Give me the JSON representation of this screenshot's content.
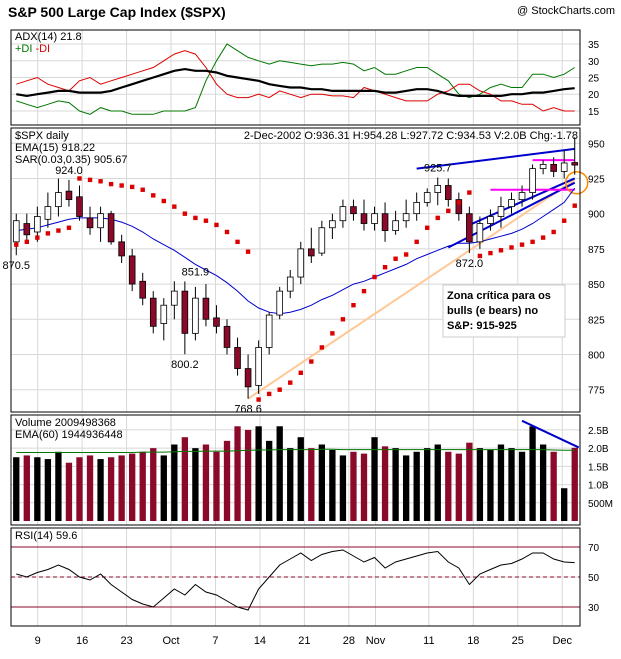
{
  "header": {
    "title": "S&P 500 Large Cap Index ($SPX)",
    "watermark": "@ StockCharts.com"
  },
  "colors": {
    "up_candle": "#ffffff",
    "down_candle": "#8b0a2a",
    "ema": "#0000cc",
    "sar": "#dd0000",
    "adx": "#000000",
    "plus_di": "#007700",
    "minus_di": "#dd0000",
    "trendline_blue": "#0000cc",
    "trendline_orange": "#ffc896",
    "support_magenta": "#ff00ff",
    "note_text": "#ff6600",
    "vol_up": "#000000",
    "vol_down": "#8b0a2a",
    "rsi": "#000000",
    "rsi_bands": "#8b0a2a"
  },
  "chart_data": [
    {
      "type": "line",
      "panel": "adx",
      "legend": [
        "ADX(14) 21.8",
        "+DI",
        "-DI"
      ],
      "ylim": [
        12,
        38
      ],
      "yticks": [
        15,
        20,
        25,
        30,
        35
      ],
      "series": [
        {
          "name": "ADX(14) 21.8",
          "values": [
            20,
            19.5,
            20,
            20.5,
            21,
            21,
            20.5,
            20.5,
            20.5,
            21,
            22,
            23,
            24,
            25,
            26,
            27,
            27.5,
            27,
            27,
            26.5,
            25.5,
            25,
            24.5,
            24,
            23,
            22.5,
            22,
            22,
            21.5,
            21.5,
            21,
            21,
            21,
            21,
            21,
            20.5,
            20.5,
            21,
            21.5,
            21.5,
            21,
            20,
            19.5,
            19.5,
            19.5,
            19.5,
            19.5,
            20,
            20,
            20.5,
            20.5,
            21,
            21.5,
            21.8
          ]
        },
        {
          "name": "+DI",
          "values": [
            18,
            17,
            16,
            17,
            18,
            17.5,
            15,
            14,
            16,
            15,
            15,
            14,
            14,
            14,
            15,
            15,
            15,
            16,
            24,
            30,
            35,
            33,
            31,
            30,
            29,
            30,
            29.5,
            29,
            28.5,
            29,
            29,
            29.5,
            29,
            27,
            28,
            26,
            26,
            27,
            28,
            28,
            26,
            24,
            20,
            19,
            20,
            22,
            23,
            22,
            22,
            26,
            26,
            25,
            26,
            28
          ]
        },
        {
          "name": "-DI",
          "values": [
            23,
            24,
            25,
            23,
            22,
            21,
            24,
            25,
            23,
            24,
            25,
            26,
            27,
            28,
            30,
            32,
            33,
            32,
            28,
            23,
            20,
            19,
            19,
            20,
            19,
            21,
            20,
            19,
            20,
            20,
            19.5,
            19.5,
            19,
            22,
            21,
            20,
            19,
            18,
            18,
            18,
            20,
            21,
            23,
            23,
            21,
            20,
            18,
            18,
            17,
            17,
            15,
            16,
            15,
            15
          ]
        }
      ]
    },
    {
      "type": "candlestick",
      "panel": "price",
      "legend": [
        "$SPX daily",
        "EMA(15) 918.22",
        "SAR(0.03,0.35) 905.67"
      ],
      "info_line": "2-Dec-2002 O:936.31 H:954.28 L:927.72 C:934.53 V:2.0B Chg:-1.78",
      "ylim": [
        762,
        958
      ],
      "yticks": [
        775,
        800,
        825,
        850,
        875,
        900,
        925,
        950
      ],
      "annotations": [
        {
          "text": "870.5",
          "index": 0,
          "value": 870.5
        },
        {
          "text": "924.0",
          "index": 5,
          "value": 924.0
        },
        {
          "text": "851.9",
          "index": 17,
          "value": 851.9
        },
        {
          "text": "800.2",
          "index": 16,
          "value": 800.2
        },
        {
          "text": "768.6",
          "index": 22,
          "value": 768.6
        },
        {
          "text": "925.7",
          "index": 40,
          "value": 925.7
        },
        {
          "text": "872.0",
          "index": 43,
          "value": 872.0
        }
      ],
      "note": [
        "Zona crítica para os",
        "bulls (e bears) no",
        "S&P: 915-925"
      ],
      "ohlc": [
        [
          880,
          900,
          870.5,
          895
        ],
        [
          893,
          900,
          880,
          885
        ],
        [
          887,
          905,
          880,
          898
        ],
        [
          896,
          915,
          890,
          905
        ],
        [
          905,
          925,
          898,
          915
        ],
        [
          916,
          924,
          905,
          910
        ],
        [
          912,
          920,
          895,
          898
        ],
        [
          897,
          905,
          885,
          890
        ],
        [
          890,
          905,
          880,
          900
        ],
        [
          900,
          902,
          878,
          880
        ],
        [
          880,
          885,
          865,
          870
        ],
        [
          870,
          875,
          845,
          850
        ],
        [
          852,
          858,
          835,
          840
        ],
        [
          840,
          845,
          815,
          820
        ],
        [
          822,
          840,
          810,
          835
        ],
        [
          835,
          852,
          825,
          845
        ],
        [
          845,
          851.9,
          800.2,
          815
        ],
        [
          815,
          848,
          810,
          840
        ],
        [
          840,
          850,
          820,
          825
        ],
        [
          826,
          835,
          815,
          820
        ],
        [
          820,
          825,
          800,
          805
        ],
        [
          805,
          812,
          785,
          790
        ],
        [
          790,
          800,
          768.6,
          777
        ],
        [
          778,
          810,
          772,
          805
        ],
        [
          805,
          830,
          800,
          828
        ],
        [
          828,
          848,
          825,
          845
        ],
        [
          845,
          860,
          840,
          855
        ],
        [
          855,
          880,
          850,
          875
        ],
        [
          875,
          890,
          865,
          870
        ],
        [
          872,
          895,
          870,
          890
        ],
        [
          890,
          900,
          882,
          895
        ],
        [
          895,
          910,
          890,
          905
        ],
        [
          905,
          910,
          895,
          900
        ],
        [
          900,
          910,
          888,
          893
        ],
        [
          893,
          905,
          888,
          900
        ],
        [
          900,
          908,
          880,
          888
        ],
        [
          888,
          902,
          885,
          895
        ],
        [
          895,
          910,
          890,
          900
        ],
        [
          900,
          915,
          895,
          908
        ],
        [
          908,
          918,
          905,
          915
        ],
        [
          915,
          925.7,
          906,
          920
        ],
        [
          920,
          925,
          905,
          910
        ],
        [
          910,
          915,
          895,
          900
        ],
        [
          900,
          905,
          872,
          880
        ],
        [
          880,
          898,
          875,
          893
        ],
        [
          893,
          903,
          888,
          898
        ],
        [
          898,
          912,
          890,
          905
        ],
        [
          905,
          915,
          900,
          910
        ],
        [
          910,
          920,
          905,
          915
        ],
        [
          915,
          935,
          910,
          932
        ],
        [
          932,
          938,
          928,
          935
        ],
        [
          935,
          940,
          926,
          930
        ],
        [
          930,
          945,
          925,
          936
        ],
        [
          936.31,
          954.28,
          927.72,
          934.53
        ]
      ],
      "series": [
        {
          "name": "EMA(15) 918.22",
          "values": [
            888,
            889,
            890,
            892,
            894,
            896,
            897,
            897,
            897,
            896,
            894,
            891,
            887,
            882,
            878,
            874,
            869,
            864,
            860,
            856,
            851,
            845,
            838,
            833,
            830,
            829,
            830,
            832,
            835,
            839,
            842,
            846,
            850,
            852,
            855,
            858,
            861,
            864,
            868,
            871,
            874,
            877,
            879,
            879,
            880,
            882,
            884,
            886,
            889,
            893,
            898,
            903,
            908,
            918.22
          ]
        },
        {
          "name": "SAR(0.03,0.35) 905.67",
          "values": [
            878,
            880,
            883,
            886,
            888,
            890,
            925,
            924,
            923,
            921,
            920,
            919,
            917,
            913,
            909,
            905,
            900,
            897,
            895,
            892,
            887,
            880,
            873,
            768,
            772,
            775,
            780,
            787,
            795,
            805,
            815,
            825,
            835,
            845,
            855,
            862,
            868,
            871,
            880,
            890,
            897,
            902,
            908,
            915,
            870,
            872,
            874,
            876,
            878,
            880,
            883,
            887,
            895,
            905.67
          ]
        }
      ]
    },
    {
      "type": "bar",
      "panel": "volume",
      "legend": [
        "Volume 2009498368",
        "EMA(60) 1944936448"
      ],
      "ylim": [
        0,
        2.8
      ],
      "yticks": [
        "500M",
        "1.0B",
        "1.5B",
        "2.0B",
        "2.5B"
      ],
      "values": [
        1.75,
        1.8,
        1.75,
        1.7,
        1.9,
        1.6,
        1.75,
        1.8,
        1.7,
        1.75,
        1.8,
        1.85,
        1.9,
        2.0,
        1.8,
        2.1,
        2.3,
        2.0,
        2.1,
        1.9,
        2.2,
        2.6,
        2.5,
        2.6,
        2.2,
        2.6,
        2.0,
        2.3,
        2.0,
        2.1,
        1.95,
        1.8,
        1.9,
        1.85,
        2.3,
        2.05,
        2.0,
        1.8,
        1.9,
        2.0,
        2.1,
        1.9,
        1.85,
        2.15,
        2.0,
        1.95,
        2.1,
        2.0,
        1.9,
        2.6,
        2.1,
        1.9,
        0.9,
        2.01
      ],
      "series": [
        {
          "name": "EMA(60) 1944936448",
          "values": [
            1.88,
            1.88,
            1.88,
            1.88,
            1.88,
            1.88,
            1.88,
            1.88,
            1.88,
            1.88,
            1.88,
            1.88,
            1.89,
            1.89,
            1.89,
            1.9,
            1.91,
            1.91,
            1.92,
            1.92,
            1.92,
            1.93,
            1.94,
            1.95,
            1.95,
            1.96,
            1.96,
            1.96,
            1.96,
            1.97,
            1.97,
            1.96,
            1.96,
            1.96,
            1.96,
            1.96,
            1.96,
            1.96,
            1.96,
            1.96,
            1.96,
            1.96,
            1.96,
            1.96,
            1.96,
            1.96,
            1.96,
            1.96,
            1.96,
            1.96,
            1.96,
            1.95,
            1.94,
            1.94
          ]
        }
      ]
    },
    {
      "type": "line",
      "panel": "rsi",
      "legend": [
        "RSI(14) 59.6"
      ],
      "ylim": [
        20,
        80
      ],
      "yticks": [
        30,
        50,
        70
      ],
      "bands": [
        30,
        70
      ],
      "series": [
        {
          "name": "RSI(14) 59.6",
          "values": [
            52,
            50,
            53,
            55,
            58,
            55,
            50,
            48,
            52,
            45,
            40,
            35,
            32,
            30,
            36,
            42,
            38,
            45,
            40,
            38,
            34,
            30,
            28,
            42,
            50,
            58,
            62,
            66,
            61,
            65,
            67,
            68,
            64,
            60,
            63,
            56,
            60,
            62,
            64,
            66,
            67,
            60,
            56,
            45,
            52,
            55,
            58,
            59,
            62,
            66,
            66,
            62,
            60,
            59.6
          ]
        }
      ]
    }
  ],
  "x_axis": {
    "labels": [
      {
        "text": "9",
        "index": 3
      },
      {
        "text": "16",
        "index": 8
      },
      {
        "text": "23",
        "index": 13
      },
      {
        "text": "Oct",
        "index": 18
      },
      {
        "text": "7",
        "index": 23
      },
      {
        "text": "14",
        "index": 28
      },
      {
        "text": "21",
        "index": 33
      },
      {
        "text": "28",
        "index": 38
      },
      {
        "text": "Nov",
        "index": 41
      },
      {
        "text": "11",
        "index": 47
      },
      {
        "text": "18",
        "index": 52
      },
      {
        "text": "25",
        "index": 57
      },
      {
        "text": "Dec",
        "index": 62
      }
    ]
  }
}
